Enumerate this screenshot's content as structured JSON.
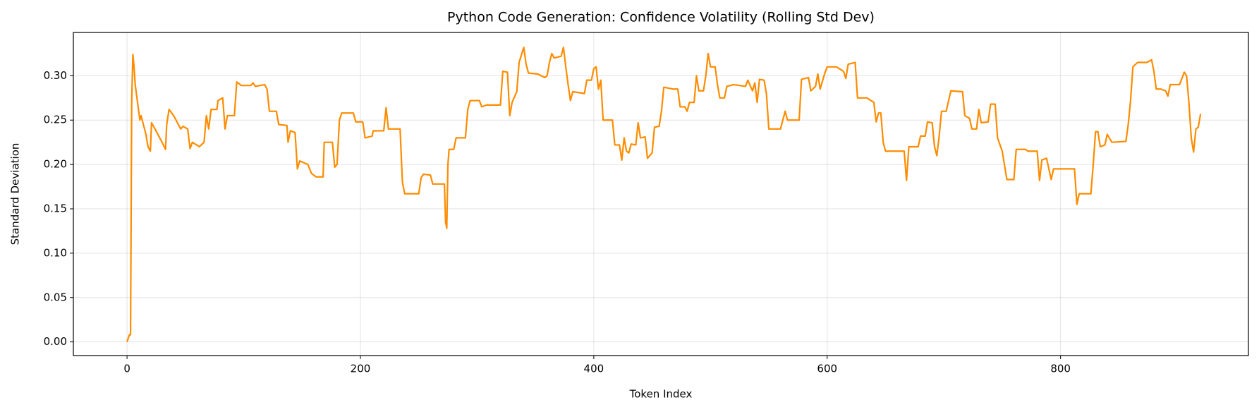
{
  "chart_data": {
    "type": "line",
    "title": "Python Code Generation: Confidence Volatility (Rolling Std Dev)",
    "x_label": "Token Index",
    "y_label": "Standard Deviation",
    "color": "#ff8c00",
    "grid": true,
    "xlim": [
      -46,
      961
    ],
    "ylim": [
      -0.0154,
      0.3488
    ],
    "xticks": [
      0,
      200,
      400,
      600,
      800
    ],
    "yticks": [
      {
        "value": 0,
        "label": "0.00"
      },
      0.05,
      {
        "value": 0.1,
        "label": "0.10"
      },
      0.15,
      {
        "value": 0.2,
        "label": "0.20"
      },
      0.25,
      {
        "value": 0.3,
        "label": "0.30"
      }
    ],
    "x": [
      0,
      2,
      3,
      4,
      5,
      6,
      7,
      9,
      11,
      12,
      14,
      16,
      18,
      20,
      21,
      24,
      30,
      33,
      34,
      36,
      40,
      46,
      48,
      52,
      54,
      56,
      62,
      66,
      68,
      70,
      72,
      77,
      78,
      82,
      84,
      86,
      92,
      94,
      98,
      106,
      108,
      110,
      118,
      120,
      122,
      128,
      130,
      137,
      138,
      140,
      144,
      146,
      148,
      155,
      158,
      162,
      168,
      169,
      176,
      178,
      180,
      182,
      184,
      194,
      196,
      202,
      204,
      210,
      211,
      220,
      222,
      224,
      234,
      236,
      238,
      250,
      252,
      254,
      260,
      262,
      272,
      273,
      274,
      275,
      276,
      280,
      282,
      290,
      292,
      294,
      302,
      304,
      308,
      320,
      322,
      326,
      328,
      330,
      334,
      336,
      340,
      342,
      344,
      352,
      358,
      360,
      362,
      364,
      366,
      372,
      374,
      376,
      378,
      380,
      382,
      392,
      394,
      398,
      400,
      402,
      404,
      406,
      408,
      416,
      418,
      422,
      424,
      426,
      428,
      430,
      432,
      436,
      438,
      440,
      444,
      446,
      450,
      452,
      456,
      458,
      460,
      468,
      472,
      474,
      478,
      480,
      482,
      486,
      488,
      490,
      494,
      496,
      498,
      500,
      504,
      506,
      508,
      512,
      514,
      520,
      530,
      532,
      536,
      538,
      540,
      542,
      546,
      548,
      550,
      556,
      560,
      564,
      566,
      576,
      578,
      584,
      586,
      590,
      592,
      594,
      598,
      600,
      608,
      614,
      616,
      618,
      624,
      626,
      634,
      640,
      642,
      644,
      646,
      648,
      650,
      666,
      668,
      670,
      678,
      680,
      684,
      686,
      690,
      692,
      694,
      696,
      698,
      702,
      706,
      716,
      718,
      722,
      724,
      728,
      730,
      732,
      738,
      740,
      744,
      746,
      750,
      754,
      760,
      762,
      770,
      772,
      780,
      782,
      784,
      788,
      790,
      792,
      794,
      812,
      814,
      816,
      826,
      828,
      830,
      832,
      834,
      838,
      840,
      844,
      856,
      858,
      860,
      862,
      866,
      874,
      878,
      880,
      882,
      886,
      890,
      892,
      894,
      902,
      906,
      908,
      910,
      912,
      914,
      916,
      918,
      920
    ],
    "values": [
      0.0,
      0.008,
      0.008,
      0.27,
      0.324,
      0.31,
      0.29,
      0.27,
      0.25,
      0.255,
      0.245,
      0.235,
      0.22,
      0.215,
      0.247,
      0.24,
      0.225,
      0.217,
      0.245,
      0.262,
      0.255,
      0.24,
      0.243,
      0.24,
      0.218,
      0.225,
      0.22,
      0.225,
      0.255,
      0.24,
      0.262,
      0.262,
      0.272,
      0.275,
      0.24,
      0.255,
      0.255,
      0.293,
      0.289,
      0.289,
      0.292,
      0.288,
      0.29,
      0.285,
      0.26,
      0.26,
      0.245,
      0.244,
      0.225,
      0.238,
      0.236,
      0.195,
      0.204,
      0.2,
      0.19,
      0.186,
      0.186,
      0.225,
      0.225,
      0.197,
      0.2,
      0.25,
      0.258,
      0.258,
      0.248,
      0.248,
      0.23,
      0.232,
      0.238,
      0.238,
      0.264,
      0.24,
      0.24,
      0.18,
      0.167,
      0.167,
      0.185,
      0.189,
      0.188,
      0.178,
      0.178,
      0.135,
      0.128,
      0.2,
      0.217,
      0.217,
      0.23,
      0.23,
      0.262,
      0.272,
      0.272,
      0.265,
      0.267,
      0.267,
      0.305,
      0.304,
      0.255,
      0.27,
      0.282,
      0.315,
      0.332,
      0.313,
      0.303,
      0.302,
      0.298,
      0.3,
      0.315,
      0.325,
      0.32,
      0.322,
      0.332,
      0.31,
      0.29,
      0.272,
      0.282,
      0.28,
      0.295,
      0.295,
      0.308,
      0.31,
      0.285,
      0.295,
      0.25,
      0.25,
      0.222,
      0.222,
      0.205,
      0.23,
      0.215,
      0.213,
      0.223,
      0.222,
      0.247,
      0.23,
      0.231,
      0.207,
      0.213,
      0.242,
      0.243,
      0.26,
      0.287,
      0.285,
      0.285,
      0.265,
      0.265,
      0.26,
      0.27,
      0.27,
      0.3,
      0.283,
      0.283,
      0.3,
      0.325,
      0.31,
      0.31,
      0.29,
      0.275,
      0.275,
      0.288,
      0.29,
      0.288,
      0.295,
      0.283,
      0.292,
      0.27,
      0.296,
      0.295,
      0.279,
      0.24,
      0.24,
      0.24,
      0.26,
      0.25,
      0.25,
      0.296,
      0.298,
      0.283,
      0.288,
      0.302,
      0.285,
      0.303,
      0.31,
      0.31,
      0.305,
      0.297,
      0.313,
      0.315,
      0.275,
      0.275,
      0.27,
      0.248,
      0.258,
      0.258,
      0.225,
      0.215,
      0.215,
      0.182,
      0.22,
      0.22,
      0.232,
      0.232,
      0.248,
      0.247,
      0.22,
      0.21,
      0.232,
      0.26,
      0.26,
      0.283,
      0.282,
      0.255,
      0.252,
      0.24,
      0.24,
      0.262,
      0.247,
      0.248,
      0.268,
      0.268,
      0.23,
      0.215,
      0.183,
      0.183,
      0.217,
      0.217,
      0.215,
      0.215,
      0.182,
      0.205,
      0.207,
      0.195,
      0.183,
      0.195,
      0.195,
      0.155,
      0.167,
      0.167,
      0.2,
      0.237,
      0.237,
      0.22,
      0.222,
      0.234,
      0.225,
      0.226,
      0.245,
      0.272,
      0.31,
      0.315,
      0.315,
      0.318,
      0.305,
      0.285,
      0.285,
      0.283,
      0.277,
      0.29,
      0.29,
      0.304,
      0.3,
      0.27,
      0.23,
      0.214,
      0.24,
      0.242,
      0.257
    ]
  }
}
